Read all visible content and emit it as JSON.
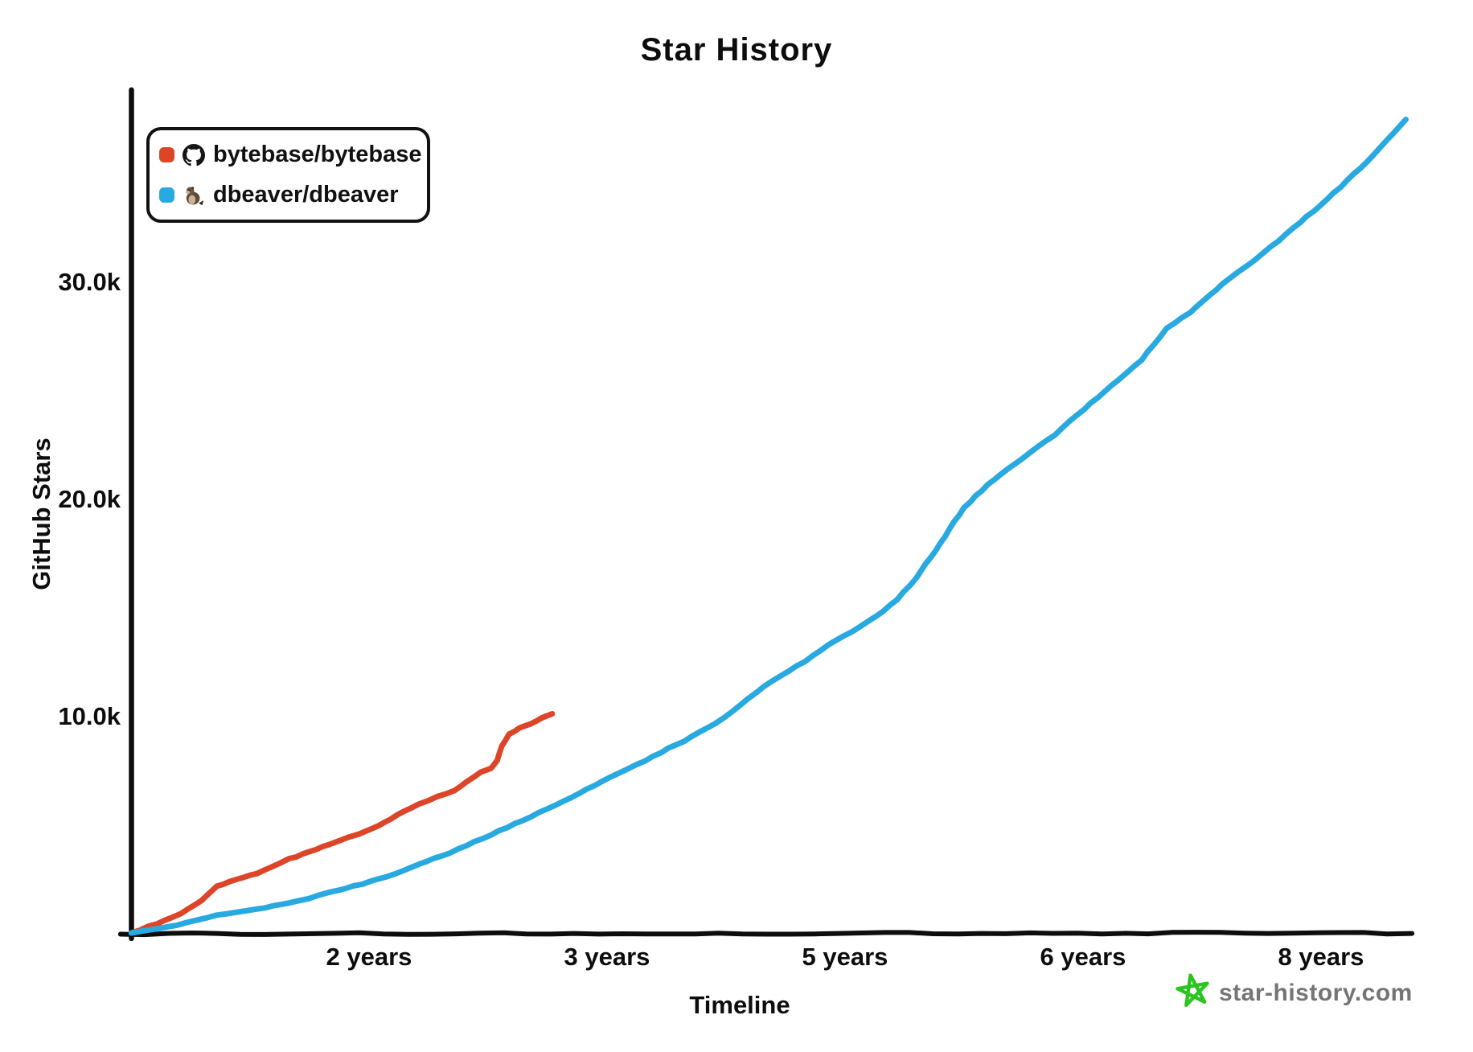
{
  "title": "Star History",
  "legend": {
    "items": [
      {
        "label": "bytebase/bytebase",
        "color": "#dd4528",
        "icon": "github-invertocat"
      },
      {
        "label": "dbeaver/dbeaver",
        "color": "#28a9e0",
        "icon": "beaver"
      }
    ]
  },
  "watermark": {
    "text": "star-history.com",
    "star_color": "#2cc41f",
    "text_color": "#757575"
  },
  "chart_data": {
    "type": "line",
    "title": "Star History",
    "xlabel": "Timeline",
    "ylabel": "GitHub Stars",
    "x_unit": "years since repository creation",
    "grid": false,
    "legend_position": "top-left",
    "axis_color": "#0d0d0d",
    "x_ticks": [
      {
        "label": "2 years",
        "years": 2
      },
      {
        "label": "3 years",
        "years": 3
      },
      {
        "label": "5 years",
        "years": 5
      },
      {
        "label": "6 years",
        "years": 6
      },
      {
        "label": "8 years",
        "years": 8
      }
    ],
    "x_tick_years": [
      0,
      2,
      3,
      5,
      6,
      8,
      10
    ],
    "y_ticks": [
      {
        "label": "10.0k",
        "value": 10000
      },
      {
        "label": "20.0k",
        "value": 20000
      },
      {
        "label": "30.0k",
        "value": 30000
      }
    ],
    "ylim": [
      0,
      38800
    ],
    "series": [
      {
        "name": "bytebase/bytebase",
        "color": "#dd4528",
        "points": [
          [
            0,
            70
          ],
          [
            0.22,
            520
          ],
          [
            0.42,
            960
          ],
          [
            0.59,
            1550
          ],
          [
            0.72,
            2220
          ],
          [
            0.89,
            2550
          ],
          [
            1.06,
            2810
          ],
          [
            1.2,
            3150
          ],
          [
            1.33,
            3480
          ],
          [
            1.5,
            3810
          ],
          [
            1.67,
            4140
          ],
          [
            1.91,
            4630
          ],
          [
            2.04,
            5000
          ],
          [
            2.12,
            5510
          ],
          [
            2.21,
            5990
          ],
          [
            2.29,
            6360
          ],
          [
            2.36,
            6620
          ],
          [
            2.41,
            7030
          ],
          [
            2.47,
            7470
          ],
          [
            2.51,
            7660
          ],
          [
            2.54,
            8030
          ],
          [
            2.56,
            8660
          ],
          [
            2.59,
            9210
          ],
          [
            2.63,
            9510
          ],
          [
            2.68,
            9730
          ],
          [
            2.73,
            9990
          ],
          [
            2.77,
            10180
          ]
        ]
      },
      {
        "name": "dbeaver/dbeaver",
        "color": "#28a9e0",
        "points": [
          [
            0,
            70
          ],
          [
            0.39,
            440
          ],
          [
            0.72,
            890
          ],
          [
            1.06,
            1180
          ],
          [
            1.33,
            1440
          ],
          [
            1.74,
            2040
          ],
          [
            2.04,
            2550
          ],
          [
            2.21,
            3220
          ],
          [
            2.34,
            3770
          ],
          [
            2.51,
            4590
          ],
          [
            2.68,
            5440
          ],
          [
            2.85,
            6330
          ],
          [
            3.03,
            7250
          ],
          [
            3.39,
            8210
          ],
          [
            3.71,
            9100
          ],
          [
            3.98,
            9950
          ],
          [
            4.32,
            11430
          ],
          [
            4.66,
            12580
          ],
          [
            4.86,
            13320
          ],
          [
            5.03,
            13950
          ],
          [
            5.13,
            14650
          ],
          [
            5.22,
            15430
          ],
          [
            5.3,
            16430
          ],
          [
            5.4,
            18020
          ],
          [
            5.5,
            19680
          ],
          [
            5.6,
            20720
          ],
          [
            5.74,
            21900
          ],
          [
            5.88,
            23010
          ],
          [
            6.01,
            24200
          ],
          [
            6.29,
            25530
          ],
          [
            6.49,
            26460
          ],
          [
            6.7,
            27900
          ],
          [
            6.9,
            28640
          ],
          [
            7.17,
            29970
          ],
          [
            7.44,
            31040
          ],
          [
            7.71,
            32260
          ],
          [
            8.05,
            33860
          ],
          [
            8.39,
            35590
          ],
          [
            8.71,
            37520
          ]
        ]
      }
    ]
  }
}
